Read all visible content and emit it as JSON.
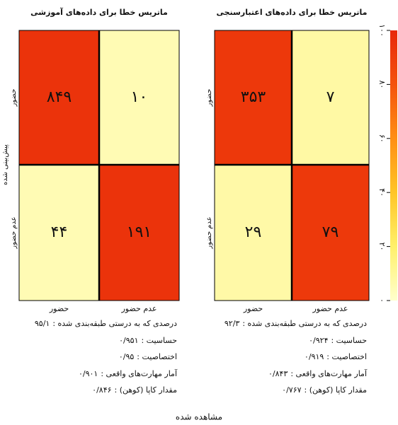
{
  "chart_data": {
    "type": "heatmap",
    "xlabel": "مشاهده شده",
    "ylabel": "پیش‌بینی شده",
    "x_categories": [
      "حضور",
      "عدم حضور"
    ],
    "y_categories": [
      "حضور",
      "عدم حضور"
    ],
    "colorscale": [
      "#ffffcc",
      "#fff06a",
      "#ffc526",
      "#ff8f14",
      "#f4530d",
      "#e8280a"
    ],
    "colorbar": {
      "lim": [
        0,
        100
      ],
      "ticks": [
        {
          "value": 0,
          "label": "۰"
        },
        {
          "value": 20,
          "label": "۲۰"
        },
        {
          "value": 40,
          "label": "۴۰"
        },
        {
          "value": 60,
          "label": "۶۰"
        },
        {
          "value": 80,
          "label": "۸۰"
        },
        {
          "value": 100,
          "label": "۱۰۰"
        }
      ]
    },
    "panels": [
      {
        "title": "ماتریس خطا برای داده‌های آموزشی",
        "values": [
          [
            849,
            10
          ],
          [
            44,
            191
          ]
        ],
        "value_labels": [
          [
            "۸۴۹",
            "۱۰"
          ],
          [
            "۴۴",
            "۱۹۱"
          ]
        ],
        "stats": [
          {
            "label": "درصدی که به درستی طبقه‌بندی شده :",
            "value": "۹۵/۱"
          },
          {
            "label": "حساسیت :",
            "value": "۰/۹۵۱"
          },
          {
            "label": "اختصاصیت :",
            "value": "۰/۹۵"
          },
          {
            "label": "آمار مهارت‌های واقعی :",
            "value": "۰/۹۰۱"
          },
          {
            "label": "مقدار کاپا (کوهن) :",
            "value": "۰/۸۴۶"
          }
        ]
      },
      {
        "title": "ماتریس خطا برای داده‌های اعتبارسنجی",
        "values": [
          [
            353,
            7
          ],
          [
            29,
            79
          ]
        ],
        "value_labels": [
          [
            "۳۵۳",
            "۷"
          ],
          [
            "۲۹",
            "۷۹"
          ]
        ],
        "stats": [
          {
            "label": "درصدی که به درستی طبقه‌بندی شده :",
            "value": "۹۲/۳"
          },
          {
            "label": "حساسیت :",
            "value": "۰/۹۲۴"
          },
          {
            "label": "اختصاصیت :",
            "value": "۰/۹۱۹"
          },
          {
            "label": "آمار مهارت‌های واقعی :",
            "value": "۰/۸۴۳"
          },
          {
            "label": "مقدار کاپا (کوهن) :",
            "value": "۰/۷۶۷"
          }
        ]
      }
    ]
  }
}
